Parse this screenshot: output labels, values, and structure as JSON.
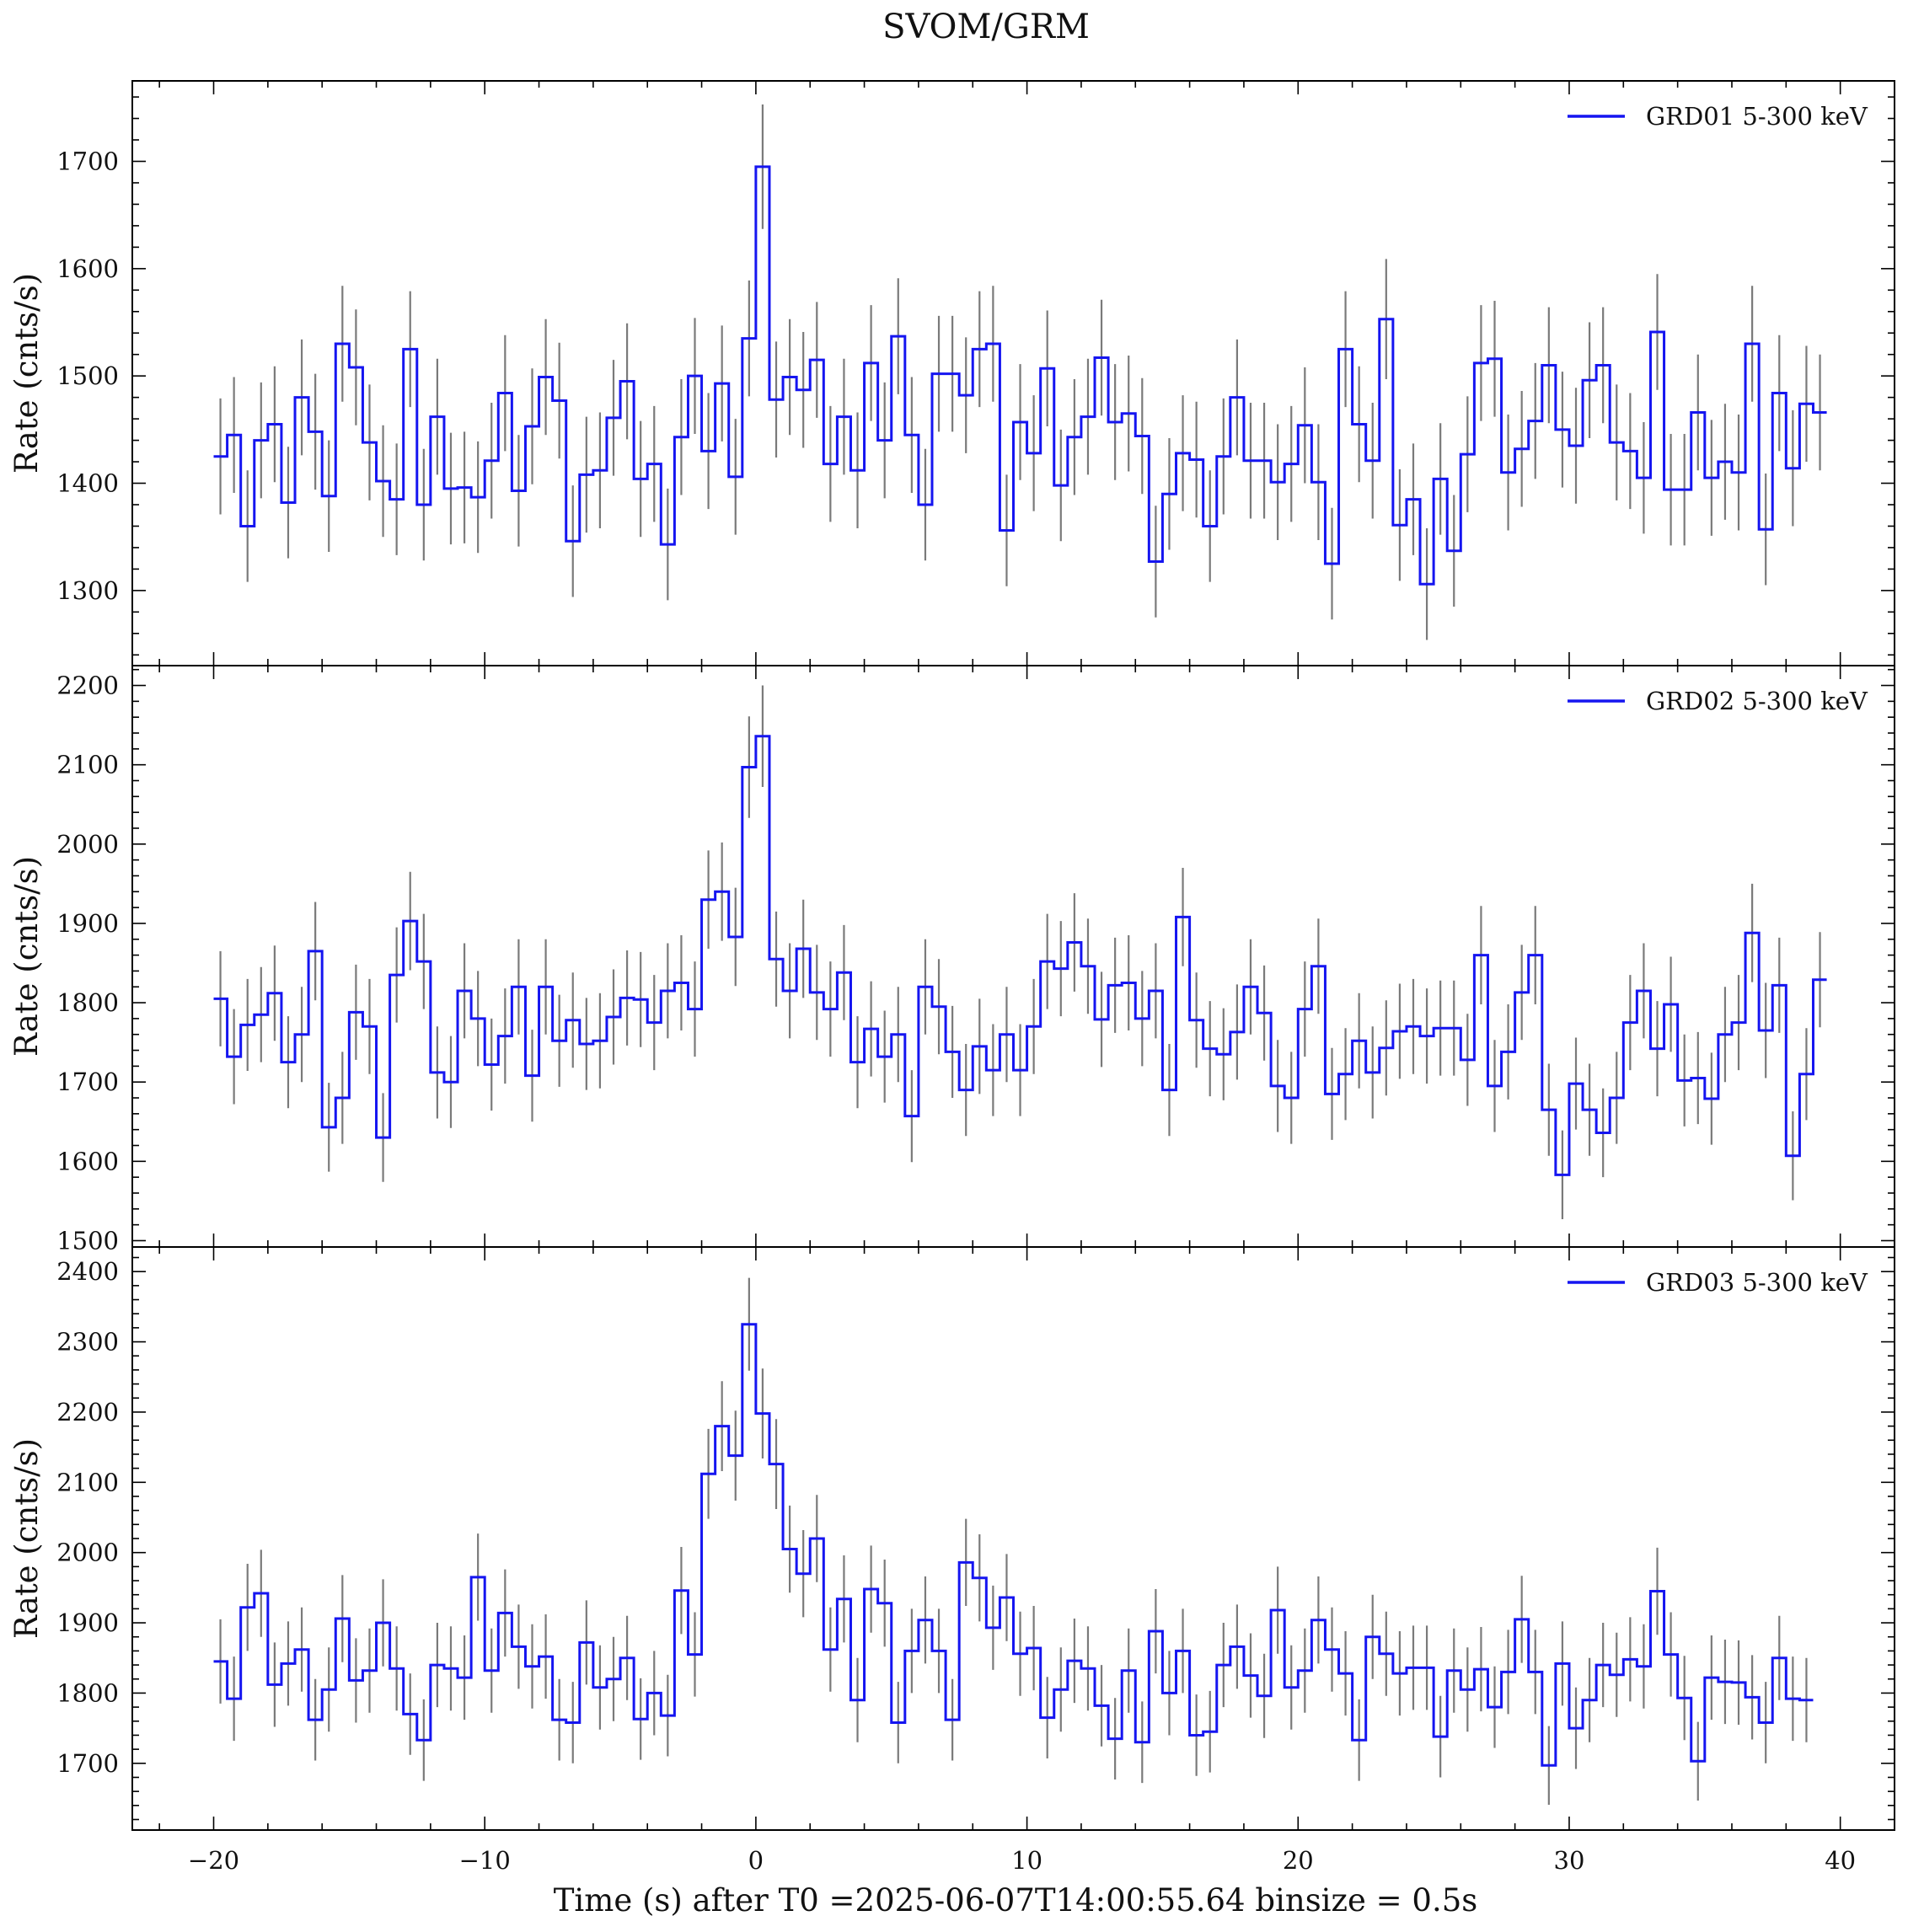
{
  "title": "SVOM/GRM",
  "xlabel": "Time (s) after T0 =2025-06-07T14:00:55.64 binsize = 0.5s",
  "colors": {
    "line": "#1515f0",
    "errorbar": "#7a7a7a",
    "frame": "#000000"
  },
  "chart_data": {
    "type": "line",
    "step": "post",
    "binsize": 0.5,
    "x_start": -20,
    "xlim": [
      -23,
      42
    ],
    "xticks": [
      -20,
      -10,
      0,
      10,
      20,
      30,
      40
    ],
    "xtick_labels": [
      "−20",
      "−10",
      "0",
      "10",
      "20",
      "30",
      "40"
    ],
    "shared_x": true,
    "grid": false,
    "panels": [
      {
        "name": "GRD01 5-300 keV",
        "legend": "top-right",
        "ylabel": "Rate (cnts/s)",
        "ylim": [
          1230,
          1775
        ],
        "yticks": [
          1300,
          1400,
          1500,
          1600,
          1700
        ],
        "values": [
          1425,
          1445,
          1360,
          1440,
          1455,
          1382,
          1480,
          1448,
          1388,
          1530,
          1508,
          1438,
          1402,
          1385,
          1525,
          1380,
          1462,
          1395,
          1396,
          1387,
          1421,
          1484,
          1393,
          1453,
          1499,
          1477,
          1346,
          1408,
          1412,
          1461,
          1495,
          1404,
          1418,
          1343,
          1443,
          1500,
          1430,
          1493,
          1406,
          1535,
          1695,
          1478,
          1499,
          1487,
          1515,
          1418,
          1462,
          1412,
          1512,
          1440,
          1537,
          1445,
          1380,
          1502,
          1502,
          1482,
          1525,
          1530,
          1356,
          1457,
          1428,
          1507,
          1398,
          1443,
          1462,
          1517,
          1457,
          1465,
          1444,
          1327,
          1390,
          1428,
          1422,
          1360,
          1425,
          1480,
          1421,
          1421,
          1401,
          1418,
          1454,
          1401,
          1325,
          1525,
          1455,
          1421,
          1553,
          1361,
          1385,
          1306,
          1404,
          1337,
          1427,
          1512,
          1516,
          1410,
          1432,
          1458,
          1510,
          1450,
          1435,
          1496,
          1510,
          1438,
          1430,
          1405,
          1541,
          1394,
          1394,
          1466,
          1405,
          1420,
          1410,
          1530,
          1357,
          1484,
          1414,
          1474,
          1466
        ],
        "errors": [
          54,
          54,
          52,
          54,
          54,
          52,
          54,
          54,
          52,
          54,
          54,
          54,
          52,
          52,
          54,
          52,
          54,
          52,
          52,
          52,
          54,
          54,
          52,
          54,
          54,
          54,
          52,
          54,
          54,
          54,
          54,
          54,
          54,
          52,
          54,
          54,
          54,
          54,
          54,
          54,
          58,
          54,
          54,
          54,
          54,
          54,
          54,
          54,
          54,
          54,
          54,
          54,
          52,
          54,
          54,
          54,
          54,
          54,
          52,
          54,
          54,
          54,
          52,
          54,
          54,
          54,
          54,
          54,
          54,
          52,
          52,
          54,
          54,
          52,
          54,
          54,
          54,
          54,
          54,
          54,
          54,
          54,
          52,
          54,
          54,
          54,
          56,
          52,
          52,
          52,
          52,
          52,
          54,
          54,
          54,
          54,
          54,
          54,
          54,
          54,
          54,
          54,
          54,
          54,
          54,
          52,
          54,
          52,
          52,
          54,
          54,
          54,
          54,
          54,
          52,
          54,
          54,
          54,
          54
        ]
      },
      {
        "name": "GRD02 5-300 keV",
        "legend": "top-right",
        "ylabel": "Rate (cnts/s)",
        "ylim": [
          1492,
          2225
        ],
        "yticks": [
          1500,
          1600,
          1700,
          1800,
          1900,
          2000,
          2100,
          2200
        ],
        "values": [
          1805,
          1732,
          1772,
          1785,
          1812,
          1725,
          1760,
          1865,
          1643,
          1680,
          1788,
          1770,
          1630,
          1835,
          1903,
          1852,
          1712,
          1700,
          1815,
          1780,
          1722,
          1758,
          1820,
          1708,
          1820,
          1752,
          1778,
          1748,
          1752,
          1782,
          1806,
          1804,
          1775,
          1815,
          1825,
          1792,
          1930,
          1940,
          1883,
          2097,
          2136,
          1855,
          1815,
          1868,
          1813,
          1792,
          1838,
          1725,
          1767,
          1732,
          1760,
          1657,
          1820,
          1795,
          1738,
          1690,
          1745,
          1715,
          1760,
          1715,
          1770,
          1852,
          1843,
          1876,
          1846,
          1779,
          1822,
          1825,
          1780,
          1815,
          1690,
          1908,
          1778,
          1742,
          1735,
          1763,
          1820,
          1787,
          1695,
          1680,
          1792,
          1846,
          1685,
          1710,
          1752,
          1712,
          1743,
          1764,
          1770,
          1758,
          1768,
          1768,
          1728,
          1860,
          1695,
          1738,
          1813,
          1860,
          1665,
          1583,
          1698,
          1665,
          1636,
          1680,
          1775,
          1815,
          1742,
          1798,
          1702,
          1705,
          1679,
          1760,
          1775,
          1888,
          1765,
          1822,
          1607,
          1710,
          1829
        ],
        "errors": [
          60,
          60,
          58,
          60,
          60,
          58,
          60,
          62,
          56,
          58,
          60,
          60,
          56,
          60,
          62,
          60,
          58,
          58,
          60,
          60,
          58,
          60,
          60,
          58,
          60,
          58,
          60,
          58,
          60,
          60,
          60,
          60,
          60,
          60,
          60,
          60,
          62,
          62,
          62,
          64,
          64,
          60,
          60,
          62,
          60,
          60,
          60,
          58,
          60,
          58,
          60,
          58,
          60,
          60,
          58,
          58,
          60,
          58,
          60,
          58,
          60,
          60,
          60,
          62,
          60,
          60,
          60,
          60,
          60,
          60,
          58,
          62,
          60,
          60,
          58,
          60,
          60,
          60,
          58,
          58,
          60,
          60,
          58,
          58,
          60,
          58,
          60,
          60,
          60,
          60,
          60,
          60,
          58,
          62,
          58,
          60,
          60,
          62,
          58,
          56,
          58,
          58,
          56,
          58,
          60,
          60,
          60,
          60,
          58,
          58,
          58,
          60,
          60,
          62,
          60,
          60,
          56,
          58,
          60
        ]
      },
      {
        "name": "GRD03 5-300 keV",
        "legend": "top-right",
        "ylabel": "Rate (cnts/s)",
        "ylim": [
          1605,
          2435
        ],
        "yticks": [
          1700,
          1800,
          1900,
          2000,
          2100,
          2200,
          2300,
          2400
        ],
        "values": [
          1845,
          1792,
          1922,
          1942,
          1812,
          1842,
          1862,
          1762,
          1805,
          1906,
          1818,
          1832,
          1900,
          1835,
          1770,
          1733,
          1840,
          1835,
          1822,
          1965,
          1832,
          1914,
          1866,
          1838,
          1852,
          1762,
          1758,
          1872,
          1808,
          1820,
          1850,
          1763,
          1800,
          1768,
          1946,
          1855,
          2112,
          2180,
          2138,
          2325,
          2198,
          2126,
          2005,
          1970,
          2020,
          1862,
          1934,
          1790,
          1948,
          1928,
          1758,
          1860,
          1904,
          1860,
          1762,
          1986,
          1964,
          1893,
          1936,
          1856,
          1864,
          1765,
          1805,
          1846,
          1835,
          1782,
          1735,
          1832,
          1730,
          1888,
          1800,
          1860,
          1740,
          1745,
          1840,
          1866,
          1825,
          1796,
          1918,
          1808,
          1832,
          1904,
          1862,
          1828,
          1733,
          1880,
          1856,
          1828,
          1836,
          1836,
          1738,
          1832,
          1805,
          1834,
          1780,
          1830,
          1905,
          1830,
          1697,
          1842,
          1750,
          1790,
          1840,
          1826,
          1848,
          1838,
          1945,
          1855,
          1793,
          1703,
          1822,
          1816,
          1815,
          1794,
          1758,
          1850,
          1792,
          1790
        ],
        "errors": [
          60,
          60,
          62,
          62,
          60,
          60,
          60,
          58,
          60,
          62,
          60,
          60,
          62,
          60,
          58,
          58,
          60,
          60,
          60,
          62,
          60,
          62,
          60,
          60,
          60,
          58,
          58,
          60,
          60,
          60,
          60,
          58,
          60,
          58,
          62,
          60,
          64,
          64,
          64,
          66,
          64,
          64,
          62,
          62,
          62,
          60,
          62,
          60,
          62,
          62,
          58,
          60,
          62,
          60,
          58,
          62,
          62,
          60,
          62,
          60,
          60,
          58,
          60,
          60,
          60,
          58,
          58,
          60,
          58,
          60,
          60,
          60,
          58,
          58,
          60,
          60,
          60,
          60,
          62,
          60,
          60,
          62,
          60,
          60,
          58,
          60,
          60,
          60,
          60,
          60,
          58,
          60,
          60,
          60,
          58,
          60,
          62,
          60,
          56,
          60,
          58,
          60,
          60,
          60,
          60,
          60,
          62,
          60,
          60,
          56,
          60,
          60,
          60,
          60,
          58,
          60,
          60,
          60
        ]
      }
    ]
  }
}
